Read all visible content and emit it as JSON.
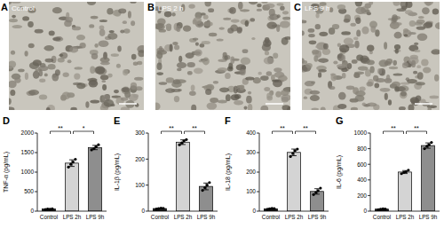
{
  "images": [
    {
      "panel": "A",
      "label": "Control"
    },
    {
      "panel": "B",
      "label": "LPS 2 h"
    },
    {
      "panel": "C",
      "label": "LPS 9 h"
    }
  ],
  "chart_data": [
    {
      "type": "bar",
      "panel": "D",
      "y_label": "TNF-α (pg/mL)",
      "categories": [
        "Control",
        "LPS 2h",
        "LPS 9h"
      ],
      "values": [
        54,
        1230,
        1630
      ],
      "errors": [
        8,
        85,
        55
      ],
      "points": [
        [
          45,
          55,
          50,
          60
        ],
        [
          1130,
          1200,
          1260,
          1330
        ],
        [
          1570,
          1600,
          1650,
          1700
        ]
      ],
      "colors": [
        "#222222",
        "#d4d4d4",
        "#8e8e8e"
      ],
      "ylim": [
        0,
        2000
      ],
      "yticks": [
        0,
        500,
        1000,
        1500,
        2000
      ],
      "annotations": [
        {
          "from": 0,
          "to": 1,
          "text": "**"
        },
        {
          "from": 1,
          "to": 2,
          "text": "*"
        }
      ]
    },
    {
      "type": "bar",
      "panel": "E",
      "y_label": "IL-1β (pg/mL)",
      "categories": [
        "Control",
        "LPS 2h",
        "LPS 9h"
      ],
      "values": [
        10,
        265,
        95
      ],
      "errors": [
        2,
        9,
        13
      ],
      "points": [
        [
          8,
          10,
          12,
          11
        ],
        [
          255,
          262,
          270,
          275
        ],
        [
          80,
          90,
          100,
          110
        ]
      ],
      "colors": [
        "#222222",
        "#d4d4d4",
        "#8e8e8e"
      ],
      "ylim": [
        0,
        300
      ],
      "yticks": [
        0,
        100,
        200,
        300
      ],
      "annotations": [
        {
          "from": 0,
          "to": 1,
          "text": "**"
        },
        {
          "from": 1,
          "to": 2,
          "text": "**"
        }
      ]
    },
    {
      "type": "bar",
      "panel": "F",
      "y_label": "IL-18 (pg/mL)",
      "categories": [
        "Control",
        "LPS 2h",
        "LPS 9h"
      ],
      "values": [
        12,
        301,
        101
      ],
      "errors": [
        2,
        17,
        14
      ],
      "points": [
        [
          10,
          12,
          14,
          13
        ],
        [
          280,
          295,
          310,
          318
        ],
        [
          85,
          95,
          105,
          118
        ]
      ],
      "colors": [
        "#222222",
        "#d4d4d4",
        "#8e8e8e"
      ],
      "ylim": [
        0,
        400
      ],
      "yticks": [
        0,
        100,
        200,
        300,
        400
      ],
      "annotations": [
        {
          "from": 0,
          "to": 1,
          "text": "**"
        },
        {
          "from": 1,
          "to": 2,
          "text": "**"
        }
      ]
    },
    {
      "type": "bar",
      "panel": "G",
      "y_label": "IL-6 (pg/mL)",
      "categories": [
        "Control",
        "LPS 2h",
        "LPS 9h"
      ],
      "values": [
        26,
        501,
        840
      ],
      "errors": [
        5,
        19,
        34
      ],
      "points": [
        [
          20,
          25,
          30,
          28
        ],
        [
          480,
          495,
          505,
          525
        ],
        [
          800,
          830,
          850,
          880
        ]
      ],
      "colors": [
        "#222222",
        "#d4d4d4",
        "#8e8e8e"
      ],
      "ylim": [
        0,
        1000
      ],
      "yticks": [
        0,
        200,
        400,
        600,
        800,
        1000
      ],
      "annotations": [
        {
          "from": 0,
          "to": 1,
          "text": "**"
        },
        {
          "from": 1,
          "to": 2,
          "text": "**"
        }
      ]
    }
  ]
}
